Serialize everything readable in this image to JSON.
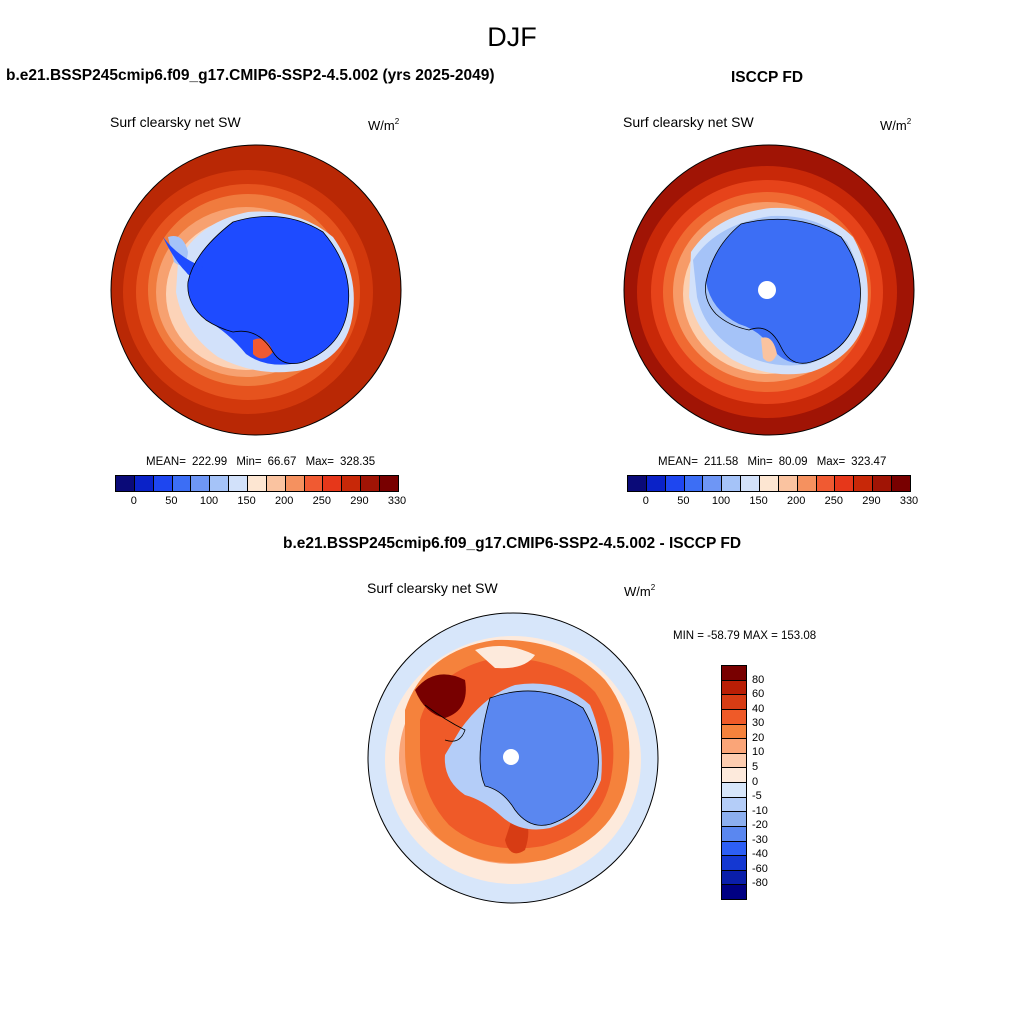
{
  "figure_title": "DJF",
  "panels": [
    {
      "title": "b.e21.BSSP245cmip6.f09_g17.CMIP6-SSP2-4.5.002 (yrs 2025-2049)",
      "variable": "Surf clearsky net SW",
      "units": "W/m",
      "units_exp": "2",
      "stats": {
        "mean_label": "MEAN=",
        "mean": "222.99",
        "min_label": "Min=",
        "min": "66.67",
        "max_label": "Max=",
        "max": "328.35"
      },
      "colorbar_ticks": [
        "0",
        "50",
        "100",
        "150",
        "200",
        "250",
        "290",
        "330"
      ]
    },
    {
      "title": "ISCCP FD",
      "variable": "Surf clearsky net SW",
      "units": "W/m",
      "units_exp": "2",
      "stats": {
        "mean_label": "MEAN=",
        "mean": "211.58",
        "min_label": "Min=",
        "min": "80.09",
        "max_label": "Max=",
        "max": "323.47"
      },
      "colorbar_ticks": [
        "0",
        "50",
        "100",
        "150",
        "200",
        "250",
        "290",
        "330"
      ]
    },
    {
      "title": "b.e21.BSSP245cmip6.f09_g17.CMIP6-SSP2-4.5.002 - ISCCP FD",
      "variable": "Surf clearsky net SW",
      "units": "W/m",
      "units_exp": "2",
      "minmax": "MIN = -58.79 MAX = 153.08",
      "colorbar_ticks": [
        "80",
        "60",
        "40",
        "30",
        "20",
        "10",
        "5",
        "0",
        "-5",
        "-10",
        "-20",
        "-30",
        "-40",
        "-60",
        "-80"
      ]
    }
  ],
  "colors": {
    "abs_scale": [
      "#0a0a78",
      "#0a22c8",
      "#1e46f0",
      "#3c6ef5",
      "#6e96f5",
      "#a5c3f8",
      "#d2e1fa",
      "#fde6d2",
      "#fac3a0",
      "#f5915f",
      "#f05a32",
      "#e6371a",
      "#c82808",
      "#a01405",
      "#780000"
    ],
    "diff_scale": [
      "#780000",
      "#b91e05",
      "#d73c14",
      "#ef5a28",
      "#f5823c",
      "#faa578",
      "#fdcdb0",
      "#fdeadc",
      "#d7e6fa",
      "#b4cdf8",
      "#8cafef",
      "#5a87f0",
      "#2d5ff5",
      "#1438d2",
      "#0a1eaa",
      "#000082"
    ],
    "land_abs": "#1e4bff",
    "land_obs": "#3c6ef5",
    "ocean_dark": "#b92805",
    "coast": "#000000"
  }
}
